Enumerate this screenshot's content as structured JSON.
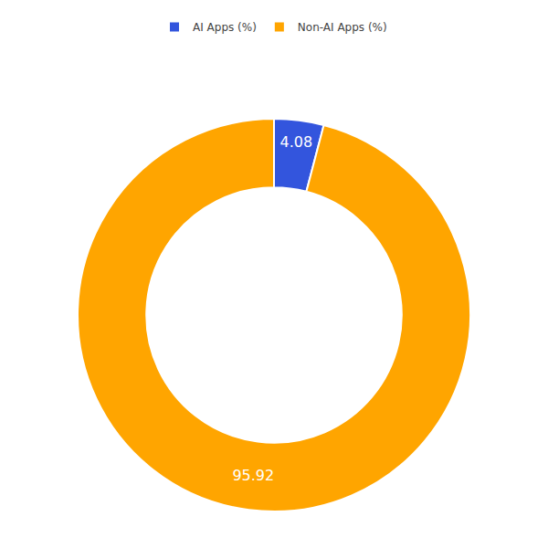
{
  "chart_data": {
    "type": "pie",
    "categories": [
      "AI Apps (%)",
      "Non-AI Apps (%)"
    ],
    "values": [
      4.08,
      95.92
    ],
    "colors": [
      "#3355dd",
      "#FFA500"
    ],
    "data_labels": true,
    "legend": "top"
  }
}
